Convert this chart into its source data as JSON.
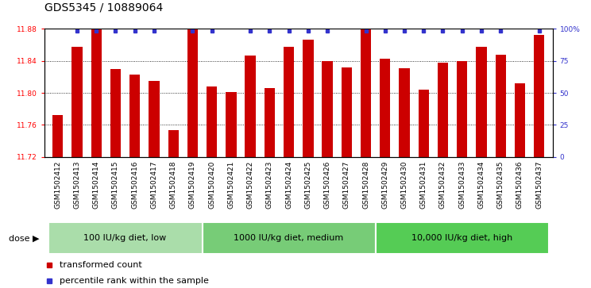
{
  "title": "GDS5345 / 10889064",
  "samples": [
    "GSM1502412",
    "GSM1502413",
    "GSM1502414",
    "GSM1502415",
    "GSM1502416",
    "GSM1502417",
    "GSM1502418",
    "GSM1502419",
    "GSM1502420",
    "GSM1502421",
    "GSM1502422",
    "GSM1502423",
    "GSM1502424",
    "GSM1502425",
    "GSM1502426",
    "GSM1502427",
    "GSM1502428",
    "GSM1502429",
    "GSM1502430",
    "GSM1502431",
    "GSM1502432",
    "GSM1502433",
    "GSM1502434",
    "GSM1502435",
    "GSM1502436",
    "GSM1502437"
  ],
  "values": [
    11.772,
    11.858,
    11.88,
    11.83,
    11.823,
    11.815,
    11.754,
    11.88,
    11.808,
    11.801,
    11.847,
    11.806,
    11.858,
    11.866,
    11.84,
    11.832,
    11.88,
    11.843,
    11.831,
    11.804,
    11.838,
    11.84,
    11.858,
    11.848,
    11.812,
    11.872
  ],
  "blue_dot_show": [
    false,
    true,
    true,
    true,
    true,
    true,
    false,
    true,
    true,
    false,
    true,
    true,
    true,
    true,
    true,
    false,
    true,
    true,
    true,
    true,
    true,
    true,
    true,
    true,
    false,
    true
  ],
  "ylim_left": [
    11.72,
    11.88
  ],
  "ylim_right": [
    0,
    100
  ],
  "yticks_left": [
    11.72,
    11.76,
    11.8,
    11.84,
    11.88
  ],
  "yticks_right": [
    0,
    25,
    50,
    75,
    100
  ],
  "bar_color": "#cc0000",
  "dot_color": "#3333cc",
  "bar_bottom": 11.72,
  "group_data": [
    {
      "label": "100 IU/kg diet, low",
      "start": 0,
      "end": 7,
      "color": "#aaddaa"
    },
    {
      "label": "1000 IU/kg diet, medium",
      "start": 8,
      "end": 16,
      "color": "#66cc66"
    },
    {
      "label": "10,000 IU/kg diet, high",
      "start": 17,
      "end": 25,
      "color": "#55cc55"
    }
  ],
  "dose_label": "dose",
  "legend_items": [
    {
      "label": "transformed count",
      "color": "#cc0000"
    },
    {
      "label": "percentile rank within the sample",
      "color": "#3333cc"
    }
  ],
  "title_fontsize": 10,
  "tick_fontsize": 6.5,
  "bar_width": 0.55,
  "xtick_bg": "#d8d8d8"
}
